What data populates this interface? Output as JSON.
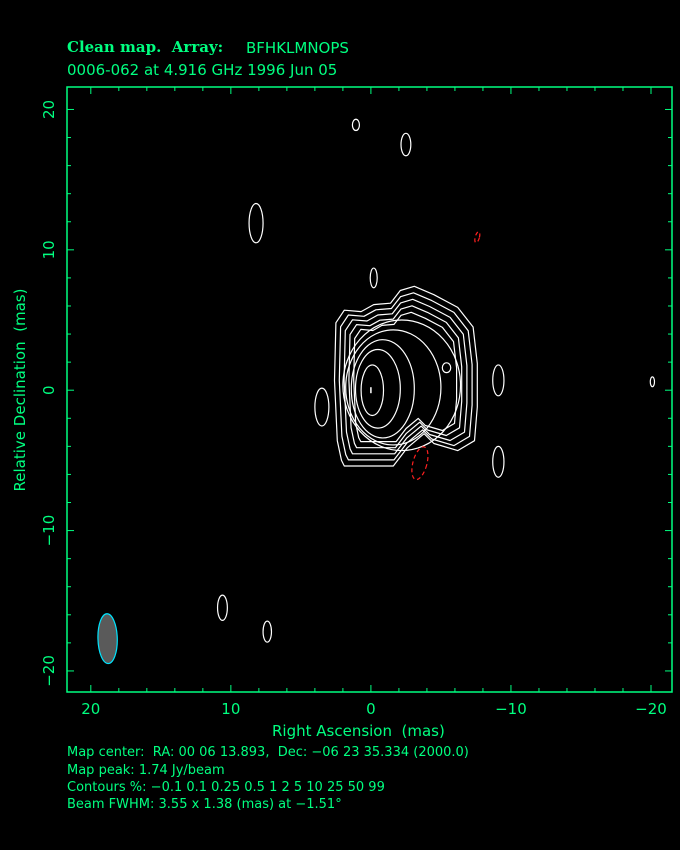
{
  "chart_data": {
    "type": "contour",
    "title_line1_bold": "Clean map.  Array:",
    "title_line1_rest": "BFHKLMNOPS",
    "title_line2": "0006-062 at 4.916 GHz 1996 Jun 05",
    "xlabel": "Right Ascension  (mas)",
    "ylabel": "Relative Declination  (mas)",
    "xlim": [
      21.7,
      -21.5
    ],
    "ylim": [
      -21.5,
      21.6
    ],
    "xticks": [
      20,
      10,
      0,
      -10,
      -20
    ],
    "yticks": [
      20,
      10,
      0,
      -10,
      -20
    ],
    "xtick_labels": [
      "20",
      "10",
      "0",
      "−10",
      "−20"
    ],
    "ytick_labels": [
      "20",
      "10",
      "0",
      "−10",
      "−20"
    ],
    "minor_tick_step": 2,
    "colors": {
      "axes": "#00ff80",
      "positive": "#ffffff",
      "negative": "#ff2020",
      "beam_fill": "#5a5a5a",
      "beam_edge": "#00e5ff"
    },
    "contour_levels_percent": [
      -0.1,
      0.1,
      0.25,
      0.5,
      1,
      2,
      5,
      10,
      25,
      50,
      99
    ],
    "peak": {
      "ra": 0,
      "dec": 0
    },
    "outer_contour": {
      "level": 0.1,
      "points": [
        [
          2.1,
          -5.0
        ],
        [
          2.4,
          -3.6
        ],
        [
          2.6,
          0.7
        ],
        [
          2.5,
          4.8
        ],
        [
          1.9,
          5.7
        ],
        [
          0.7,
          5.6
        ],
        [
          -0.2,
          6.1
        ],
        [
          -1.4,
          6.2
        ],
        [
          -2.1,
          7.1
        ],
        [
          -3.1,
          7.4
        ],
        [
          -4.5,
          6.8
        ],
        [
          -6.2,
          5.9
        ],
        [
          -7.3,
          4.5
        ],
        [
          -7.6,
          1.9
        ],
        [
          -7.6,
          -1.2
        ],
        [
          -7.4,
          -3.6
        ],
        [
          -6.2,
          -4.3
        ],
        [
          -4.5,
          -3.8
        ],
        [
          -3.8,
          -3.1
        ],
        [
          -2.6,
          -4.1
        ],
        [
          -1.6,
          -5.4
        ],
        [
          0.2,
          -5.4
        ],
        [
          1.9,
          -5.4
        ]
      ]
    },
    "core_contours": [
      {
        "level": 5,
        "ra": -2.2,
        "dec": 0.35,
        "a": 4.2,
        "b": 4.65
      },
      {
        "level": 10,
        "ra": -1.6,
        "dec": 0.2,
        "a": 3.4,
        "b": 4.1
      },
      {
        "level": 25,
        "ra": -0.85,
        "dec": 0.1,
        "a": 2.25,
        "b": 3.5
      },
      {
        "level": 50,
        "ra": -0.5,
        "dec": 0.1,
        "a": 1.6,
        "b": 2.8
      },
      {
        "level": 99,
        "ra": -0.1,
        "dec": 0.0,
        "a": 0.8,
        "b": 1.8
      }
    ],
    "islands": [
      {
        "level": 0.1,
        "ra": 1.07,
        "dec": 18.9,
        "a": 0.25,
        "b": 0.4
      },
      {
        "level": 0.1,
        "ra": -2.5,
        "dec": 17.5,
        "a": 0.35,
        "b": 0.8
      },
      {
        "level": 0.1,
        "ra": 8.2,
        "dec": 11.9,
        "a": 0.5,
        "b": 1.4
      },
      {
        "level": 0.1,
        "ra": -0.2,
        "dec": 8.0,
        "a": 0.25,
        "b": 0.7
      },
      {
        "level": 0.1,
        "ra": 3.5,
        "dec": -1.2,
        "a": 0.5,
        "b": 1.35
      },
      {
        "level": 0.1,
        "ra": -9.1,
        "dec": 0.7,
        "a": 0.4,
        "b": 1.1
      },
      {
        "level": 0.1,
        "ra": -9.1,
        "dec": -5.1,
        "a": 0.4,
        "b": 1.1
      },
      {
        "level": 0.1,
        "ra": -20.1,
        "dec": 0.6,
        "a": 0.15,
        "b": 0.35
      },
      {
        "level": 0.1,
        "ra": 10.6,
        "dec": -15.5,
        "a": 0.35,
        "b": 0.9
      },
      {
        "level": 0.1,
        "ra": 7.4,
        "dec": -17.2,
        "a": 0.3,
        "b": 0.75
      },
      {
        "level": 0.1,
        "ra": -5.4,
        "dec": 1.6,
        "a": 0.3,
        "b": 0.35
      },
      {
        "level": -0.1,
        "ra": -3.5,
        "dec": -5.2,
        "a": 0.5,
        "b": 1.2
      },
      {
        "level": -0.1,
        "ra": -7.6,
        "dec": 10.9,
        "a": 0.15,
        "b": 0.4
      }
    ],
    "beam": {
      "ra": 18.8,
      "dec": -17.7,
      "major_mas": 3.55,
      "minor_mas": 1.38,
      "pa_deg": -1.51
    },
    "footer": {
      "map_center": "Map center:  RA: 00 06 13.893,  Dec: −06 23 35.334 (2000.0)",
      "map_peak": "Map peak: 1.74 Jy/beam",
      "contours": "Contours %: −0.1 0.1 0.25 0.5 1 2 5 10 25 50 99",
      "beam_fwhm": "Beam FWHM: 3.55 x 1.38 (mas) at −1.51°"
    }
  }
}
